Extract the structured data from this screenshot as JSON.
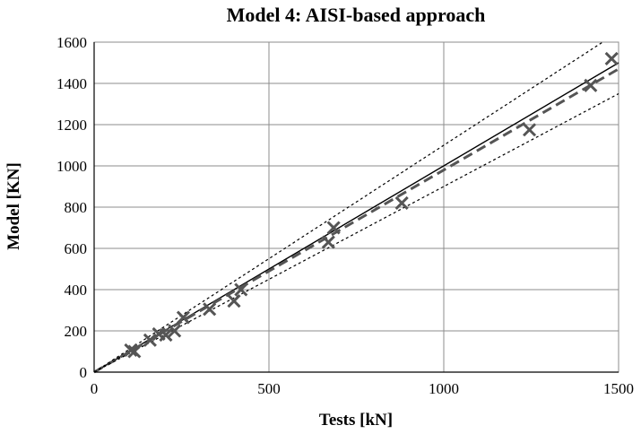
{
  "chart_data": {
    "type": "scatter",
    "title": "Model 4: AISI-based approach",
    "xlabel": "Tests [kN]",
    "ylabel": "Model [KN]",
    "xlim": [
      0,
      1500
    ],
    "ylim": [
      0,
      1600
    ],
    "x_ticks": [
      "0",
      "500",
      "1000",
      "1500"
    ],
    "y_ticks": [
      "0",
      "200",
      "400",
      "600",
      "800",
      "1000",
      "1200",
      "1400",
      "1600"
    ],
    "grid": true,
    "legend": "none",
    "marker": "x",
    "colors": {
      "points": "#555555",
      "reference_line": "#000000",
      "fit_line": "#555555",
      "bound_lines": "#000000",
      "grid": "#8c8c8c"
    },
    "points": [
      {
        "x": 105,
        "y": 107
      },
      {
        "x": 115,
        "y": 100
      },
      {
        "x": 160,
        "y": 155
      },
      {
        "x": 185,
        "y": 185
      },
      {
        "x": 205,
        "y": 180
      },
      {
        "x": 230,
        "y": 200
      },
      {
        "x": 255,
        "y": 265
      },
      {
        "x": 330,
        "y": 305
      },
      {
        "x": 400,
        "y": 345
      },
      {
        "x": 420,
        "y": 400
      },
      {
        "x": 670,
        "y": 630
      },
      {
        "x": 685,
        "y": 700
      },
      {
        "x": 880,
        "y": 820
      },
      {
        "x": 1245,
        "y": 1175
      },
      {
        "x": 1420,
        "y": 1390
      },
      {
        "x": 1480,
        "y": 1520
      }
    ],
    "lines": [
      {
        "style": "solid",
        "slope": 1.0
      },
      {
        "style": "dashed",
        "slope": 0.98
      },
      {
        "style": "dotted",
        "slope": 1.1
      },
      {
        "style": "dotted",
        "slope": 0.9
      }
    ]
  }
}
